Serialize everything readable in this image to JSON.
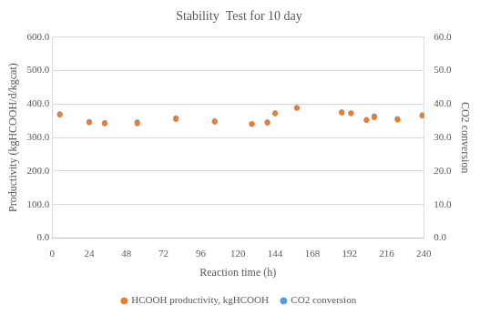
{
  "chart_data": {
    "type": "scatter",
    "title": "Stability  Test for 10 day",
    "x_label": "Reaction time (h)",
    "y_label": "Productivity (kgHCOOH/d/kgcat)",
    "y2_label": "CO2 conversion",
    "x": [
      5,
      24,
      34,
      55,
      80,
      105,
      129,
      139,
      144,
      158,
      187,
      193,
      203,
      208,
      223,
      239
    ],
    "series": [
      {
        "name": "HCOOH productivity, kgHCOOH",
        "color": "#ed7d31",
        "marker": "circle",
        "values": [
          368,
          345,
          342,
          342,
          355,
          347,
          340,
          344,
          372,
          388,
          374,
          372,
          352,
          360,
          353,
          365
        ]
      },
      {
        "name": "CO2 conversion",
        "color": "#5b9bd5",
        "marker": "circle",
        "axis": "y2",
        "values": [
          37.0,
          34.7,
          34.4,
          34.6,
          35.8,
          34.9,
          34.1,
          34.6,
          37.3,
          38.9,
          37.6,
          37.3,
          35.3,
          36.4,
          35.6,
          36.7
        ]
      }
    ],
    "xlim": [
      0,
      240
    ],
    "xticks": [
      0,
      24,
      48,
      72,
      96,
      120,
      144,
      168,
      192,
      216,
      240
    ],
    "ylim": [
      0,
      600
    ],
    "yticks": [
      {
        "value": 0,
        "label": "0.0"
      },
      {
        "value": 100,
        "label": "100.0"
      },
      {
        "value": 200,
        "label": "200.0"
      },
      {
        "value": 300,
        "label": "300.0"
      },
      {
        "value": 400,
        "label": "400.0"
      },
      {
        "value": 500,
        "label": "500.0"
      },
      {
        "value": 600,
        "label": "600.0"
      }
    ],
    "y2lim": [
      0,
      60
    ],
    "y2ticks": [
      {
        "value": 0,
        "label": "0.0"
      },
      {
        "value": 10,
        "label": "10.0"
      },
      {
        "value": 20,
        "label": "20.0"
      },
      {
        "value": 30,
        "label": "30.0"
      },
      {
        "value": 40,
        "label": "40.0"
      },
      {
        "value": 50,
        "label": "50.0"
      },
      {
        "value": 60,
        "label": "60.0"
      }
    ],
    "grid": true,
    "legend": "bottom"
  }
}
